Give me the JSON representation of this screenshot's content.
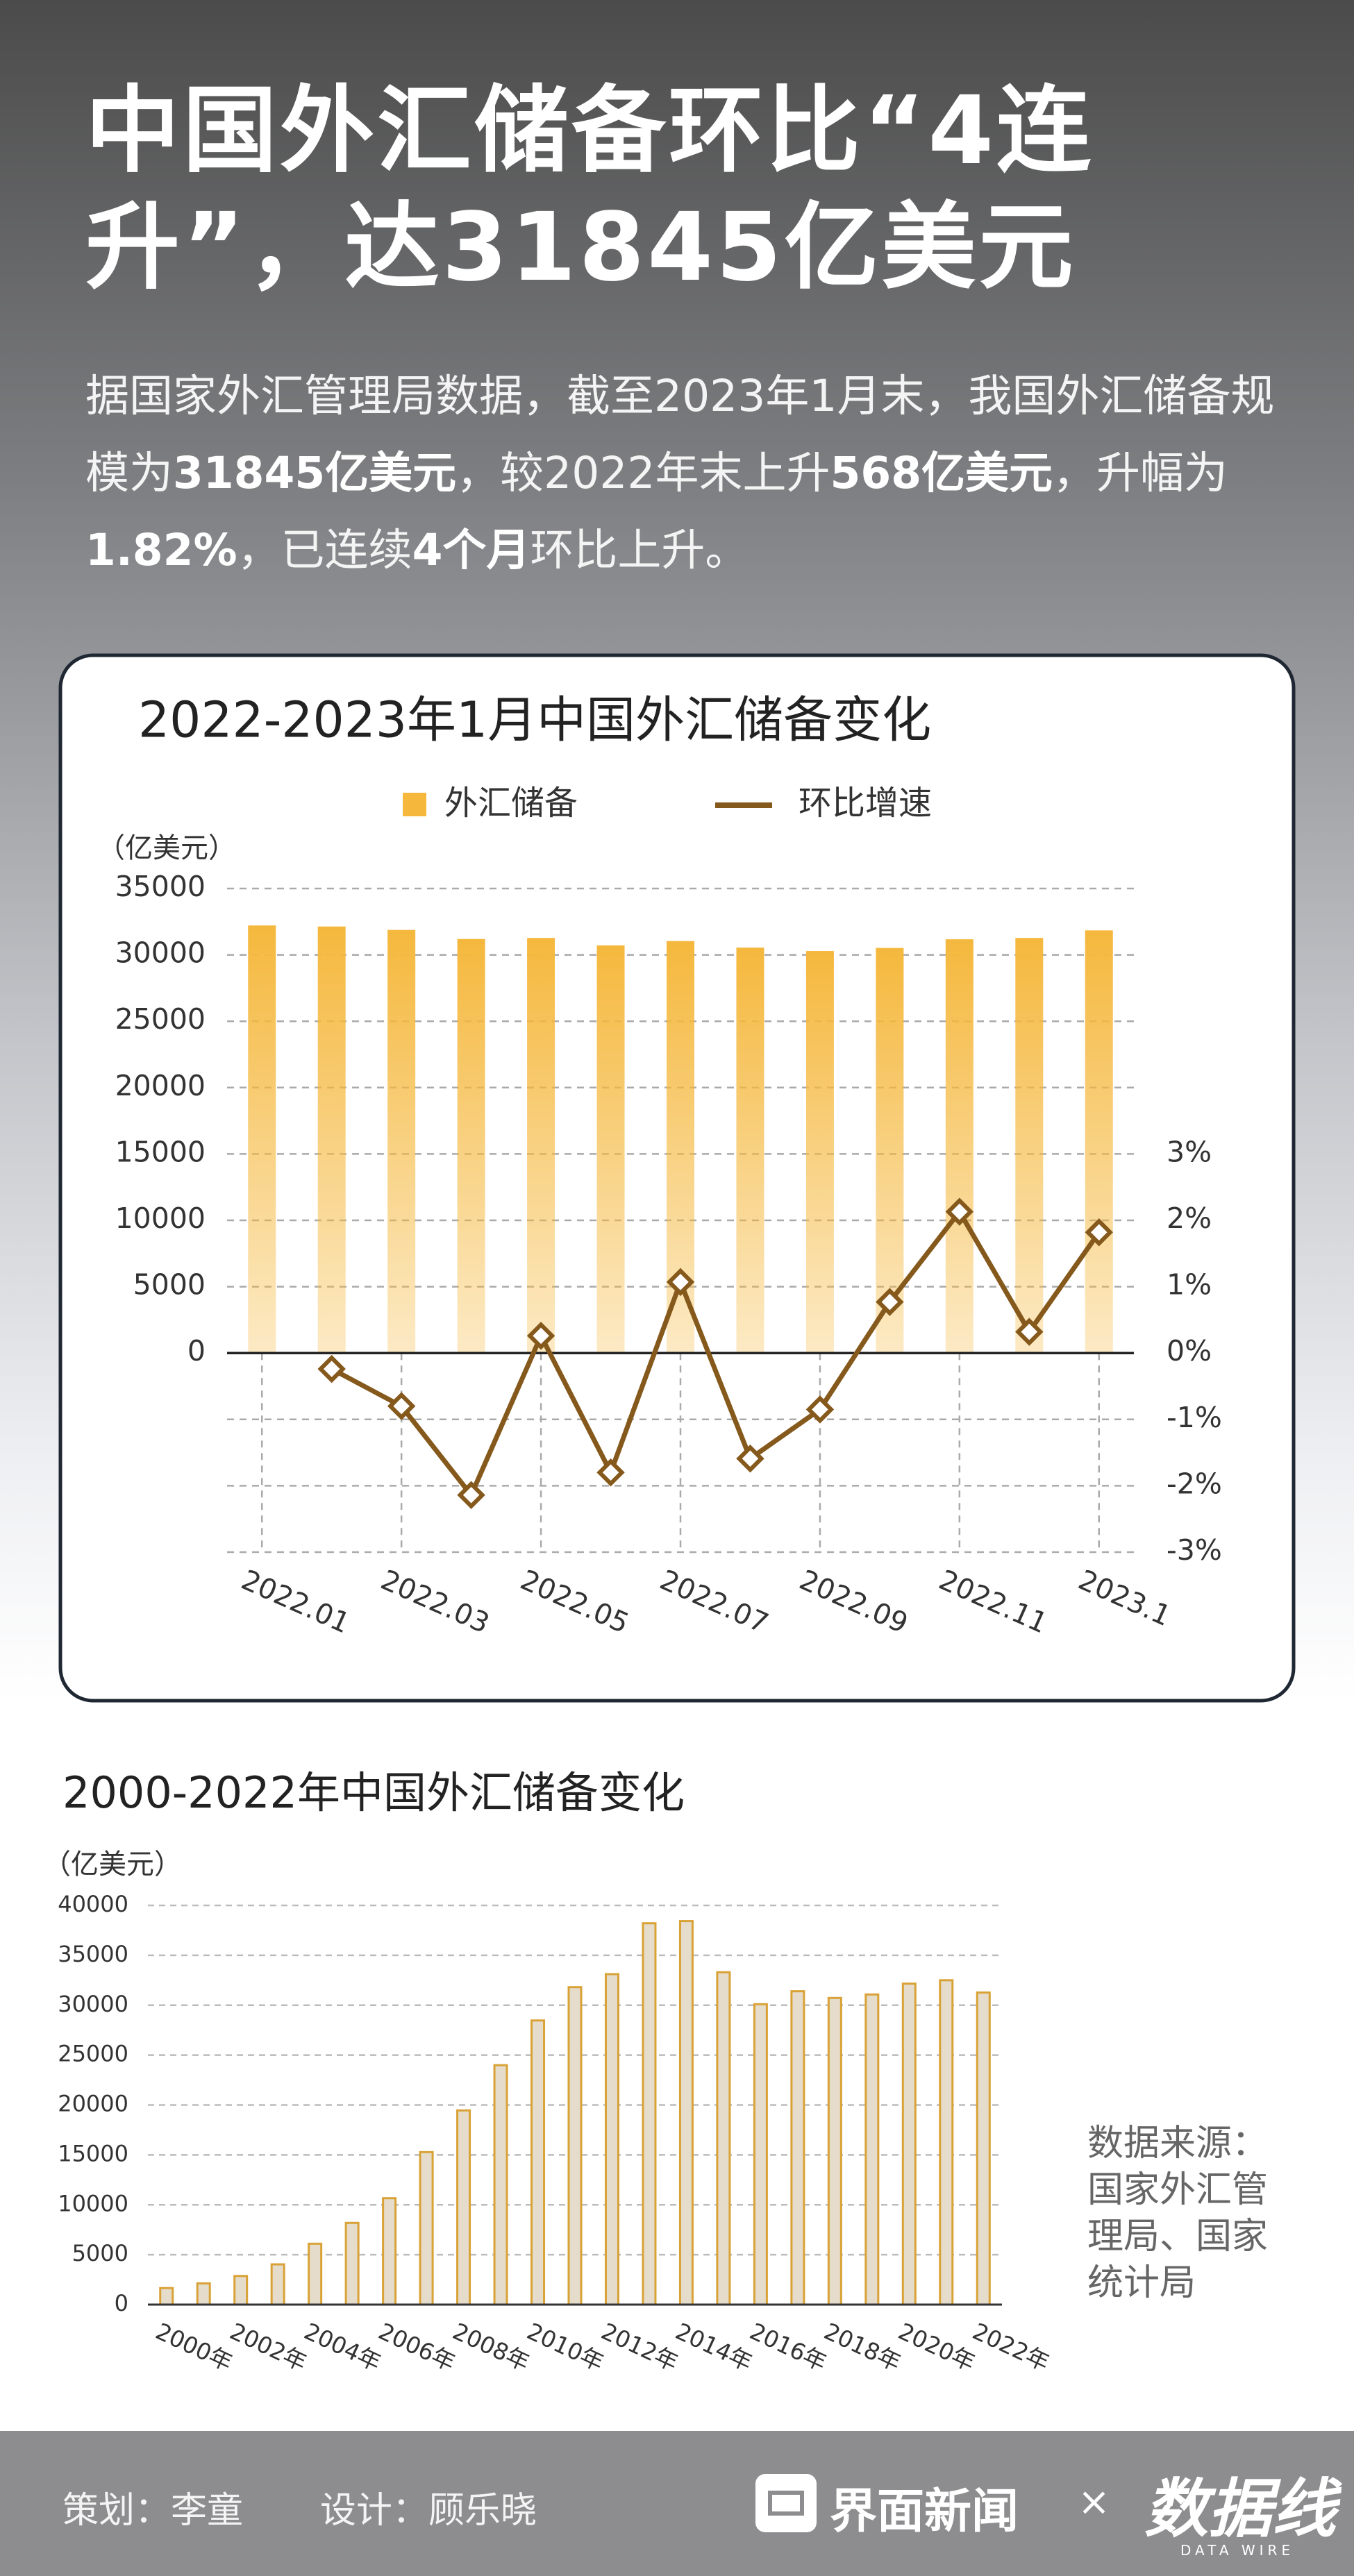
{
  "title": "中国外汇储备环比“4连升”，达31845亿美元",
  "intro": [
    {
      "text": "据国家外汇管理局数据，截至2023年1月末，我国外汇储备规模为"
    },
    {
      "text": "31845亿美元",
      "bold": true
    },
    {
      "text": "，较2022年末上升"
    },
    {
      "text": "568亿美元",
      "bold": true
    },
    {
      "text": "，升幅为"
    },
    {
      "text": "1.82%",
      "bold": true
    },
    {
      "text": "，已连续"
    },
    {
      "text": "4个月",
      "bold": true
    },
    {
      "text": "环比上升。"
    }
  ],
  "chart_data": [
    {
      "type": "bar_line",
      "title": "2022-2023年1月中国外汇储备变化",
      "y_label": "（亿美元）",
      "categories": [
        "2022.01",
        null,
        "2022.03",
        null,
        "2022.05",
        null,
        "2022.07",
        null,
        "2022.09",
        null,
        "2022.11",
        null,
        "2023.1"
      ],
      "series": [
        {
          "name": "外汇储备",
          "type": "bar",
          "color": "#f5b83d",
          "values": [
            32216,
            32138,
            31880,
            31197,
            31278,
            30713,
            31041,
            30549,
            30290,
            30524,
            31175,
            31277,
            31845
          ]
        },
        {
          "name": "环比增速",
          "type": "line",
          "axis": "y2",
          "color": "#85591c",
          "values": [
            null,
            -0.24,
            -0.8,
            -2.14,
            0.26,
            -1.8,
            1.07,
            -1.59,
            -0.85,
            0.77,
            2.13,
            0.32,
            1.82
          ]
        }
      ],
      "ylim": [
        -15000,
        35000
      ],
      "yticks": [
        0,
        5000,
        10000,
        15000,
        20000,
        25000,
        30000,
        35000
      ],
      "y2lim": [
        -3,
        7
      ],
      "y2ticks": [
        {
          "value": -3,
          "label": "-3%"
        },
        {
          "value": -2,
          "label": "-2%"
        },
        {
          "value": -1,
          "label": "-1%"
        },
        {
          "value": 0,
          "label": "0%"
        },
        {
          "value": 1,
          "label": "1%"
        },
        {
          "value": 2,
          "label": "2%"
        },
        {
          "value": 3,
          "label": "3%"
        }
      ],
      "grid": true
    },
    {
      "type": "bar",
      "title": "2000-2022年中国外汇储备变化",
      "y_label": "（亿美元）",
      "categories": [
        "2000年",
        null,
        "2002年",
        null,
        "2004年",
        null,
        "2006年",
        null,
        "2008年",
        null,
        "2010年",
        null,
        "2012年",
        null,
        "2014年",
        null,
        "2016年",
        null,
        "2018年",
        null,
        "2020年",
        null,
        "2022年"
      ],
      "values": [
        1656,
        2122,
        2864,
        4033,
        6099,
        8189,
        10663,
        15282,
        19460,
        23992,
        28473,
        31811,
        33116,
        38213,
        38430,
        33304,
        30105,
        31399,
        30727,
        31079,
        32165,
        32502,
        31277
      ],
      "color": "#e6dccb",
      "edge_color": "#d9a236",
      "ylim": [
        0,
        40000
      ],
      "yticks": [
        0,
        5000,
        10000,
        15000,
        20000,
        25000,
        30000,
        35000,
        40000
      ],
      "grid": true
    }
  ],
  "source": "数据来源：国家外汇管理局、国家统计局",
  "credits": [
    "策划：李童",
    "设计：顾乐晓"
  ],
  "brand": "界面新闻",
  "separator": "×",
  "brand2": "数据线",
  "brand2_sub": "DATA WIRE"
}
